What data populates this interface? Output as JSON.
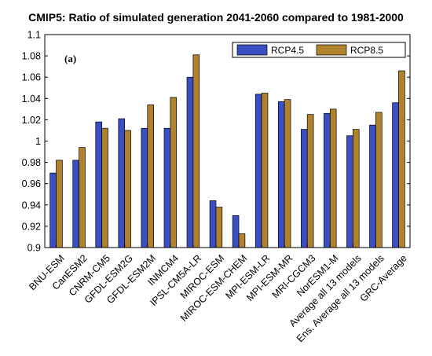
{
  "chart_data": {
    "type": "bar",
    "title": "CMIP5: Ratio of simulated generation 2041-2060 compared to 1981-2000",
    "panel_label": "(a)",
    "xlabel": "",
    "ylabel": "",
    "ylim": [
      0.9,
      1.1
    ],
    "yticks": [
      "0.9",
      "0.92",
      "0.94",
      "0.96",
      "0.98",
      "1",
      "1.02",
      "1.04",
      "1.06",
      "1.08",
      "1.1"
    ],
    "legend_position": "top-right",
    "grid": false,
    "categories": [
      "BNU-ESM",
      "CanESM2",
      "CNRM-CM5",
      "GFDL-ESM2G",
      "GFDL-ESM2M",
      "INMCM4",
      "IPSL-CM5A-LR",
      "MIROC-ESM",
      "MIROC-ESM-CHEM",
      "MPI-ESM-LR",
      "MPI-ESM-MR",
      "MRI-CGCM3",
      "NorESM1-M",
      "Average all 13 models",
      "Ens. Average all 13 models",
      "GRC-Average"
    ],
    "series": [
      {
        "name": "RCP4.5",
        "color": "#3b4fc4",
        "values": [
          0.97,
          0.982,
          1.018,
          1.021,
          1.012,
          1.012,
          1.06,
          0.944,
          0.93,
          1.044,
          1.037,
          1.011,
          1.026,
          1.005,
          1.015,
          1.036
        ]
      },
      {
        "name": "RCP8.5",
        "color": "#b0822e",
        "values": [
          0.982,
          0.994,
          1.012,
          1.01,
          1.034,
          1.041,
          1.081,
          0.938,
          0.913,
          1.045,
          1.039,
          1.025,
          1.03,
          1.011,
          1.027,
          1.066
        ]
      }
    ]
  }
}
